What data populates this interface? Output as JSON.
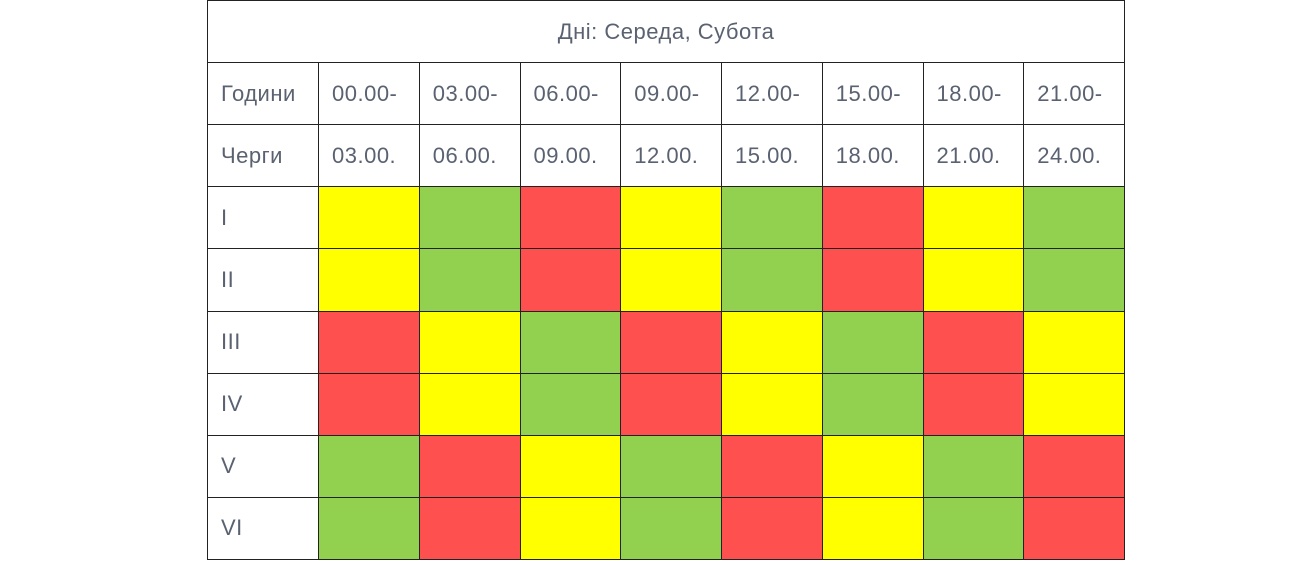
{
  "title": "Дні: Середа, Субота",
  "header": {
    "row1_label": "Години",
    "row2_label": "Черги",
    "slot_starts": [
      "00.00-",
      "03.00-",
      "06.00-",
      "09.00-",
      "12.00-",
      "15.00-",
      "18.00-",
      "21.00-"
    ],
    "slot_ends": [
      "03.00.",
      "06.00.",
      "09.00.",
      "12.00.",
      "15.00.",
      "18.00.",
      "21.00.",
      "24.00."
    ]
  },
  "status_colors": {
    "yellow": "#ffff00",
    "green": "#92d050",
    "red": "#ff5050"
  },
  "queues": [
    {
      "label": "I",
      "statuses": [
        "yellow",
        "green",
        "red",
        "yellow",
        "green",
        "red",
        "yellow",
        "green"
      ]
    },
    {
      "label": "II",
      "statuses": [
        "yellow",
        "green",
        "red",
        "yellow",
        "green",
        "red",
        "yellow",
        "green"
      ]
    },
    {
      "label": "III",
      "statuses": [
        "red",
        "yellow",
        "green",
        "red",
        "yellow",
        "green",
        "red",
        "yellow"
      ]
    },
    {
      "label": "IV",
      "statuses": [
        "red",
        "yellow",
        "green",
        "red",
        "yellow",
        "green",
        "red",
        "yellow"
      ]
    },
    {
      "label": "V",
      "statuses": [
        "green",
        "red",
        "yellow",
        "green",
        "red",
        "yellow",
        "green",
        "red"
      ]
    },
    {
      "label": "VI",
      "statuses": [
        "green",
        "red",
        "yellow",
        "green",
        "red",
        "yellow",
        "green",
        "red"
      ]
    }
  ]
}
